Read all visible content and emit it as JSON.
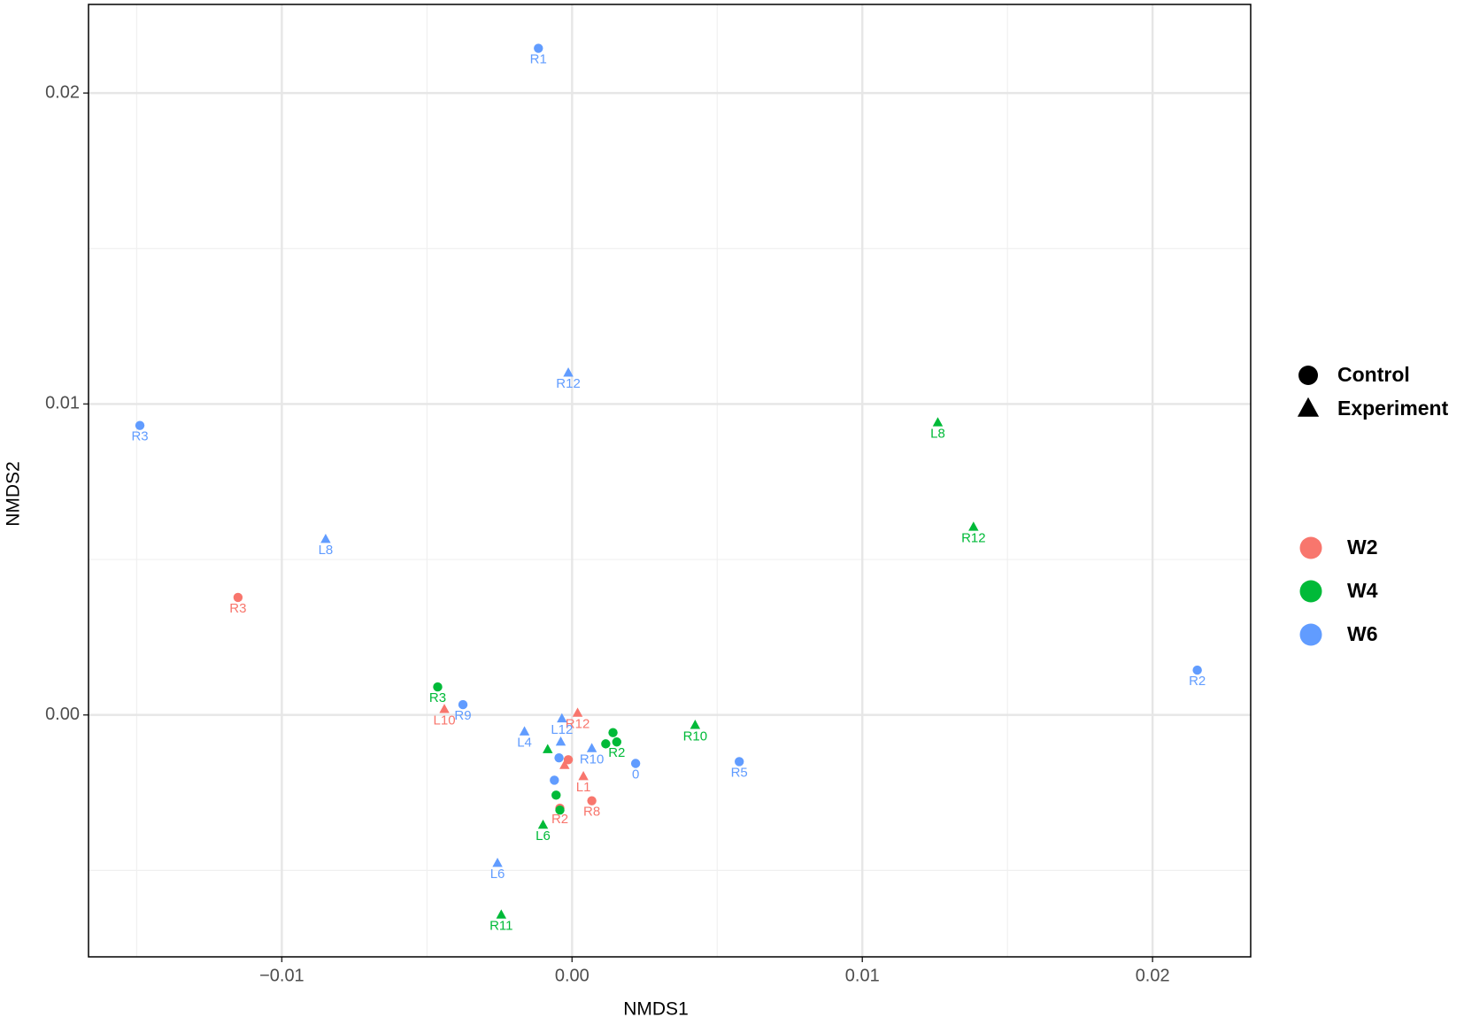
{
  "chart_data": {
    "type": "scatter",
    "xlabel": "NMDS1",
    "ylabel": "NMDS2",
    "xlim": [
      -0.01666,
      0.02338
    ],
    "ylim": [
      -0.00778,
      0.02285
    ],
    "xticks": [
      {
        "value": -0.01,
        "label": "−0.01"
      },
      {
        "value": 0,
        "label": "0.00"
      },
      0.01,
      0.02
    ],
    "yticks": [
      {
        "value": 0,
        "label": "0.00"
      },
      0.01,
      0.02
    ],
    "xminor": [
      -0.015,
      -0.005,
      0.005,
      0.015
    ],
    "yminor": [
      -0.005,
      0.005,
      0.015
    ],
    "grid": true,
    "shape_legend": [
      "Control",
      "Experiment"
    ],
    "series": [
      {
        "name": "W2",
        "color": "#F8766D",
        "x": [
          -0.01151,
          -0.0044,
          0.00019,
          0.00039,
          0.00068,
          -0.00013,
          -0.00026,
          -0.00042
        ],
        "values": [
          0.00378,
          0.00018,
          6e-05,
          -0.00198,
          -0.00276,
          -0.00144,
          -0.00162,
          -0.003
        ],
        "labels": [
          "R3",
          "L10",
          "R12",
          "L1",
          "R8",
          null,
          null,
          "R2"
        ],
        "shapes": [
          "Control",
          "Experiment",
          "Experiment",
          "Experiment",
          "Control",
          "Control",
          "Experiment",
          "Control"
        ]
      },
      {
        "name": "W4",
        "color": "#00BA38",
        "x": [
          0.0126,
          0.01383,
          -0.00463,
          0.00424,
          0.00141,
          0.00116,
          0.00154,
          -0.00084,
          -0.001,
          -0.00244,
          -0.00055,
          -0.00042
        ],
        "values": [
          0.0094,
          0.00604,
          0.0009,
          -0.00033,
          -0.00057,
          -0.00093,
          -0.00087,
          -0.00111,
          -0.00354,
          -0.00643,
          -0.00258,
          -0.00306
        ],
        "labels": [
          "L8",
          "R12",
          "R3",
          "R10",
          null,
          null,
          "R2",
          null,
          "L6",
          "R11",
          null,
          null
        ],
        "shapes": [
          "Experiment",
          "Experiment",
          "Control",
          "Experiment",
          "Control",
          "Control",
          "Control",
          "Experiment",
          "Experiment",
          "Experiment",
          "Control",
          "Control"
        ]
      },
      {
        "name": "W6",
        "color": "#619CFF",
        "x": [
          -0.00116,
          -0.00013,
          -0.01489,
          -0.00849,
          -0.00376,
          -0.00164,
          -0.00035,
          0.00068,
          0.00219,
          0.00576,
          0.02154,
          -0.00257,
          -0.00039,
          -0.00045,
          -0.00061
        ],
        "values": [
          0.02144,
          0.011,
          0.00931,
          0.00565,
          0.00033,
          -0.00054,
          -0.00012,
          -0.00108,
          -0.00156,
          -0.0015,
          0.00144,
          -0.00477,
          -0.00087,
          -0.00138,
          -0.0021
        ],
        "labels": [
          "R1",
          "R12",
          "R3",
          "L8",
          "R9",
          "L4",
          "L12",
          "R10",
          "0",
          "R5",
          "R2",
          "L6",
          null,
          null,
          null
        ],
        "shapes": [
          "Control",
          "Experiment",
          "Control",
          "Experiment",
          "Control",
          "Experiment",
          "Experiment",
          "Experiment",
          "Control",
          "Control",
          "Control",
          "Experiment",
          "Experiment",
          "Control",
          "Control"
        ]
      }
    ]
  }
}
